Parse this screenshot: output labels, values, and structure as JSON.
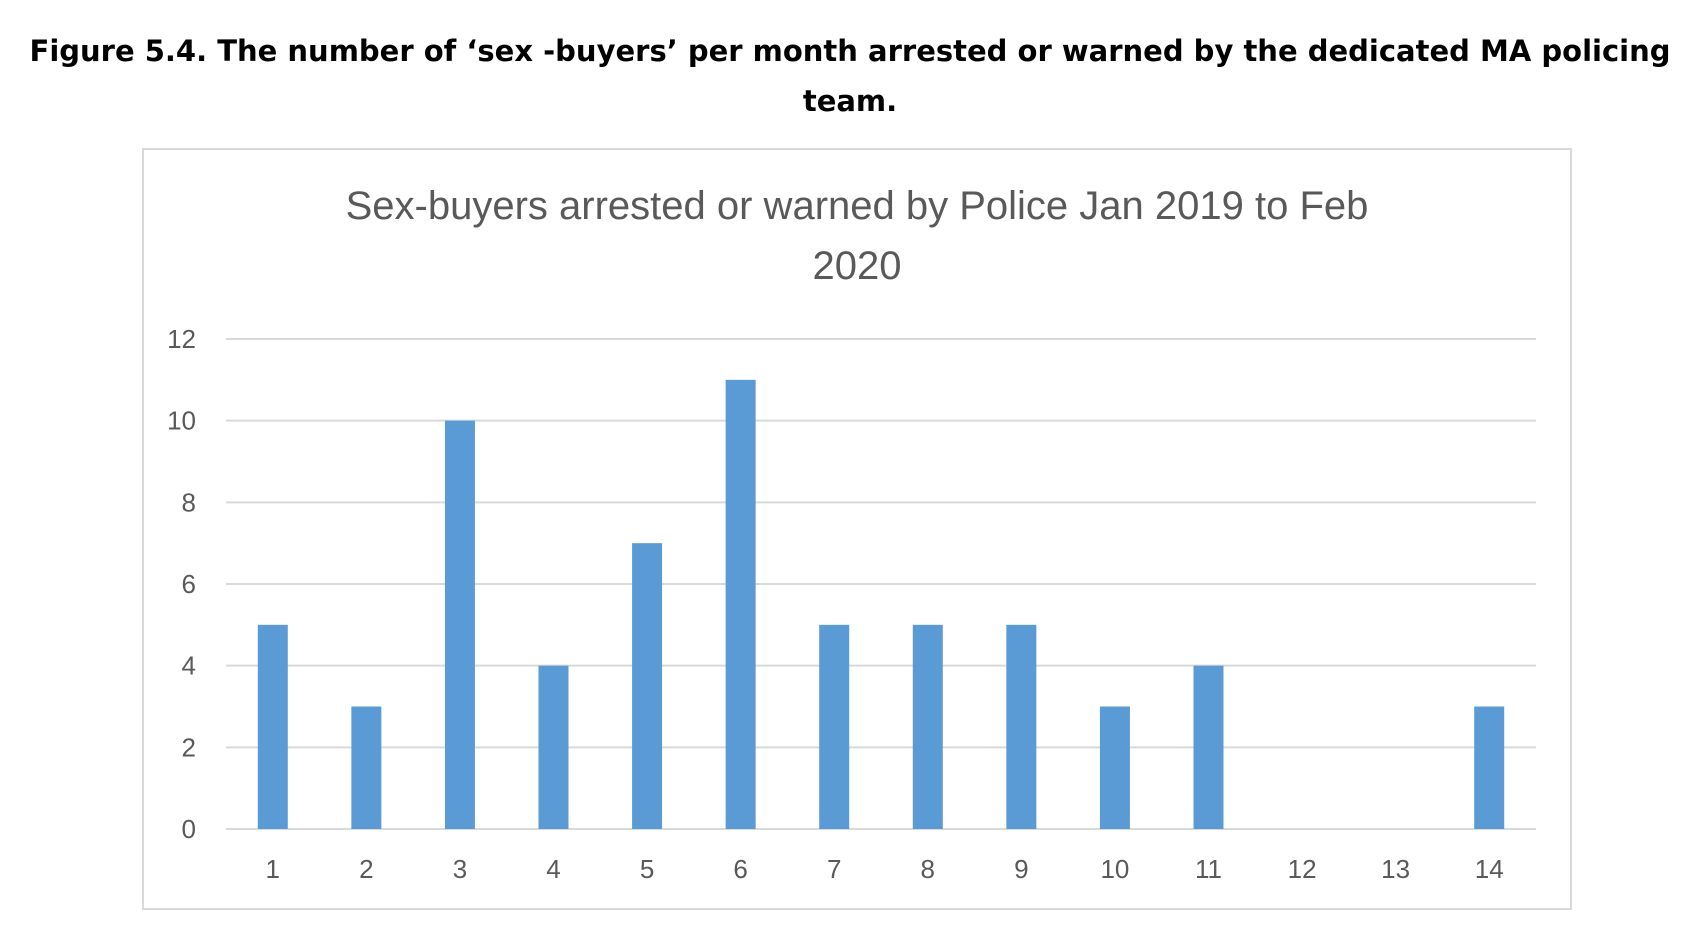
{
  "figure_caption": "Figure 5.4. The number of ‘sex -buyers’ per month arrested or warned by the dedicated MA policing team.",
  "colors": {
    "bar": "#5b9bd5",
    "grid": "#d9d9d9",
    "text": "#595959"
  },
  "chart_data": {
    "type": "bar",
    "title": "Sex-buyers  arrested or warned by Police Jan 2019 to Feb 2020",
    "xlabel": "",
    "ylabel": "",
    "categories": [
      "1",
      "2",
      "3",
      "4",
      "5",
      "6",
      "7",
      "8",
      "9",
      "10",
      "11",
      "12",
      "13",
      "14"
    ],
    "values": [
      5,
      3,
      10,
      4,
      7,
      11,
      5,
      5,
      5,
      3,
      4,
      0,
      0,
      3
    ],
    "ylim": [
      0,
      12
    ],
    "yticks": [
      "0",
      "2",
      "4",
      "6",
      "8",
      "10",
      "12"
    ],
    "grid": true,
    "legend": "none"
  }
}
